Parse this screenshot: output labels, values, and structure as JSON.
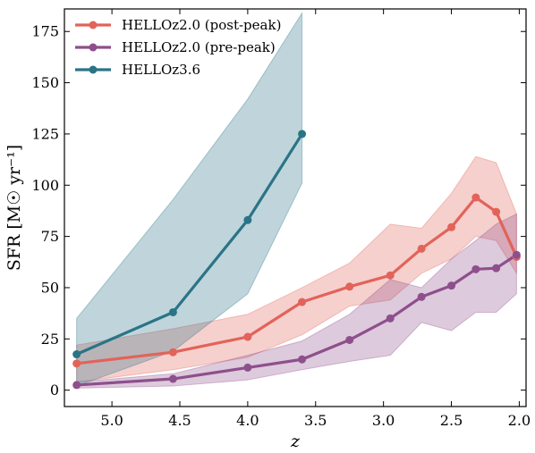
{
  "chart_data": {
    "type": "line",
    "xlabel": "z",
    "ylabel": "SFR [M☉ yr⁻¹]",
    "xlim": [
      5.35,
      1.95
    ],
    "ylim": [
      -8,
      186
    ],
    "x_ticks": [
      5.0,
      4.5,
      4.0,
      3.5,
      3.0,
      2.5,
      2.0
    ],
    "x_tick_labels": [
      "5.0",
      "4.5",
      "4.0",
      "3.5",
      "3.0",
      "2.5",
      "2.0"
    ],
    "y_ticks": [
      0,
      25,
      50,
      75,
      100,
      125,
      150,
      175
    ],
    "y_tick_labels": [
      "0",
      "25",
      "50",
      "75",
      "100",
      "125",
      "150",
      "175"
    ],
    "legend_position": "top-left",
    "grid": false,
    "series": [
      {
        "name": "HELLOz2.0 (post-peak)",
        "color": "#e2635a",
        "x": [
          5.26,
          4.55,
          4.0,
          3.6,
          3.25,
          2.95,
          2.72,
          2.5,
          2.32,
          2.17,
          2.02
        ],
        "y": [
          13,
          18.5,
          26,
          43,
          50.5,
          56,
          69,
          79.5,
          94,
          87,
          65
        ],
        "band_upper": [
          22,
          30,
          37,
          50,
          62,
          81,
          79,
          96,
          114,
          111,
          86
        ],
        "band_lower": [
          4,
          10,
          16,
          27,
          41,
          44,
          57,
          64,
          75,
          73,
          57
        ]
      },
      {
        "name": "HELLOz2.0 (pre-peak)",
        "color": "#8e4f8c",
        "x": [
          5.26,
          4.55,
          4.0,
          3.6,
          3.25,
          2.95,
          2.72,
          2.5,
          2.32,
          2.17,
          2.02
        ],
        "y": [
          2.5,
          5.5,
          11,
          15,
          24.5,
          35,
          45.5,
          51,
          59,
          59.5,
          66
        ],
        "band_upper": [
          4,
          8,
          17,
          24,
          37,
          54,
          50,
          64,
          73,
          81,
          86
        ],
        "band_lower": [
          1,
          2,
          5,
          10,
          14,
          17,
          33,
          29,
          38,
          38,
          47
        ]
      },
      {
        "name": "HELLOz3.6",
        "color": "#2a7487",
        "x": [
          5.26,
          4.55,
          4.0,
          3.6
        ],
        "y": [
          17.5,
          38,
          83,
          125
        ],
        "band_upper": [
          35,
          93,
          142,
          184
        ],
        "band_lower": [
          2,
          19,
          47,
          101
        ]
      }
    ]
  }
}
